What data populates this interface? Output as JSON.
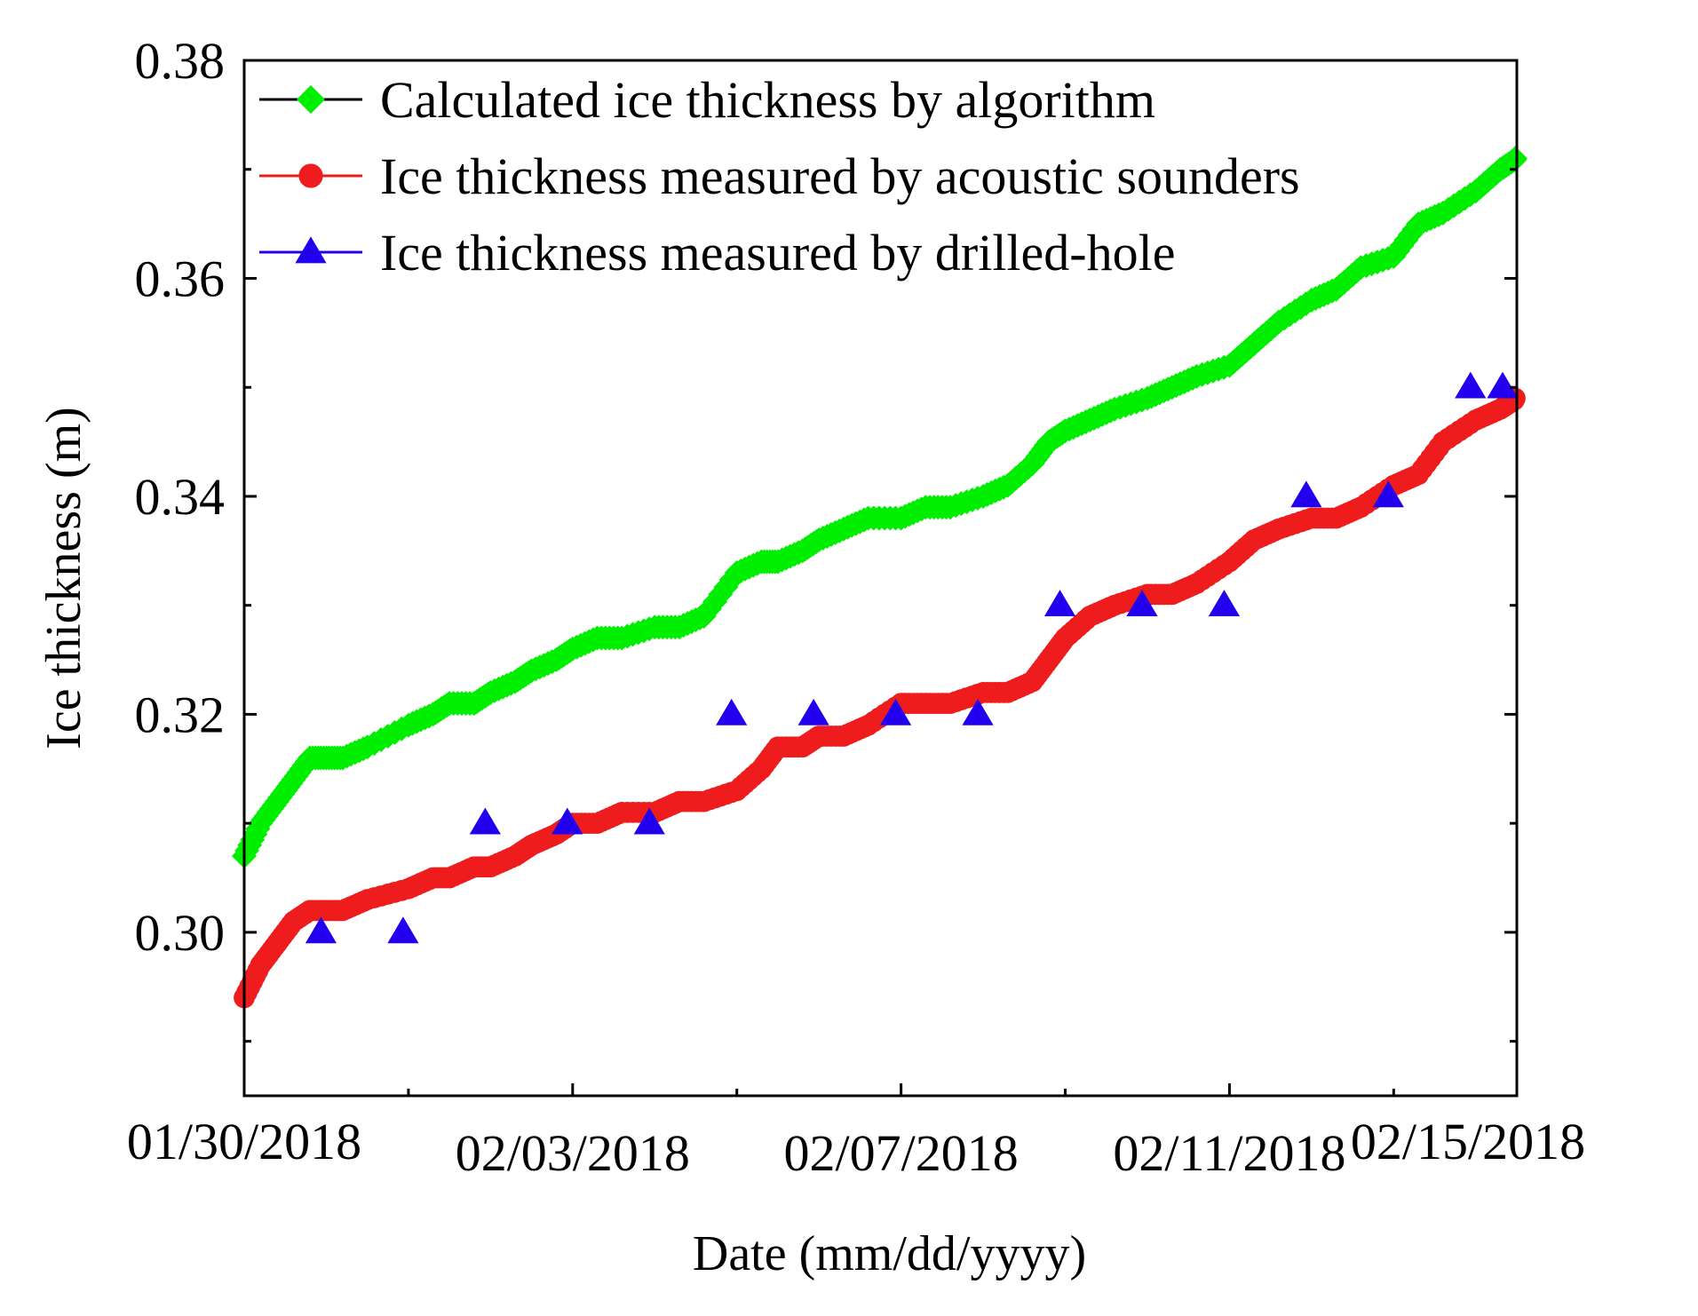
{
  "chart_data": {
    "type": "line",
    "title": "",
    "xlabel": "Date (mm/dd/yyyy)",
    "ylabel": "Ice thickness (m)",
    "x_unit": "days since 01/30/2018",
    "xlim": [
      0,
      15.5
    ],
    "ylim": [
      0.285,
      0.38
    ],
    "y_ticks": [
      "0.30",
      "0.32",
      "0.34",
      "0.36",
      "0.38"
    ],
    "y_tick_values": [
      0.3,
      0.32,
      0.34,
      0.36,
      0.38
    ],
    "x_tick_labels": [
      "01/30/2018",
      "02/03/2018",
      "02/07/2018",
      "02/11/2018",
      "02/15/2018"
    ],
    "x_tick_values": [
      0,
      4,
      8,
      12,
      16
    ],
    "legend_position": "top-left",
    "series": [
      {
        "name": "Calculated ice thickness by algorithm",
        "color": "#00ee00",
        "marker": "diamond",
        "x": [
          0,
          0.2,
          0.4,
          0.6,
          0.8,
          1.0,
          1.2,
          1.5,
          2.0,
          2.3,
          2.5,
          2.8,
          3.0,
          3.3,
          3.5,
          3.8,
          4.0,
          4.3,
          4.6,
          5.0,
          5.3,
          5.6,
          6.0,
          6.3,
          6.5,
          6.8,
          7.0,
          7.3,
          7.6,
          8.0,
          8.3,
          8.6,
          9.0,
          9.3,
          9.6,
          9.8,
          10.0,
          10.3,
          10.6,
          11.0,
          11.3,
          11.6,
          12.0,
          12.3,
          12.6,
          13.0,
          13.3,
          13.6,
          14.0,
          14.3,
          14.6,
          15.0,
          15.3,
          15.5
        ],
        "y": [
          0.307,
          0.31,
          0.312,
          0.314,
          0.316,
          0.316,
          0.316,
          0.317,
          0.319,
          0.32,
          0.321,
          0.321,
          0.322,
          0.323,
          0.324,
          0.325,
          0.326,
          0.327,
          0.327,
          0.328,
          0.328,
          0.329,
          0.333,
          0.334,
          0.334,
          0.335,
          0.336,
          0.337,
          0.338,
          0.338,
          0.339,
          0.339,
          0.34,
          0.341,
          0.343,
          0.345,
          0.346,
          0.347,
          0.348,
          0.349,
          0.35,
          0.351,
          0.352,
          0.354,
          0.356,
          0.358,
          0.359,
          0.361,
          0.362,
          0.365,
          0.366,
          0.368,
          0.37,
          0.371
        ]
      },
      {
        "name": "Ice thickness measured by acoustic sounders",
        "color": "#ee1c1c",
        "marker": "circle",
        "x": [
          0,
          0.2,
          0.4,
          0.6,
          0.8,
          1.0,
          1.2,
          1.5,
          2.0,
          2.3,
          2.5,
          2.8,
          3.0,
          3.3,
          3.5,
          3.8,
          4.0,
          4.3,
          4.6,
          5.0,
          5.3,
          5.6,
          6.0,
          6.3,
          6.5,
          6.8,
          7.0,
          7.3,
          7.6,
          8.0,
          8.3,
          8.6,
          9.0,
          9.3,
          9.6,
          9.8,
          10.0,
          10.3,
          10.6,
          11.0,
          11.3,
          11.6,
          12.0,
          12.3,
          12.6,
          13.0,
          13.3,
          13.6,
          14.0,
          14.3,
          14.6,
          15.0,
          15.3,
          15.5
        ],
        "y": [
          0.294,
          0.297,
          0.299,
          0.301,
          0.302,
          0.302,
          0.302,
          0.303,
          0.304,
          0.305,
          0.305,
          0.306,
          0.306,
          0.307,
          0.308,
          0.309,
          0.31,
          0.31,
          0.311,
          0.311,
          0.312,
          0.312,
          0.313,
          0.315,
          0.317,
          0.317,
          0.318,
          0.318,
          0.319,
          0.321,
          0.321,
          0.321,
          0.322,
          0.322,
          0.323,
          0.325,
          0.327,
          0.329,
          0.33,
          0.331,
          0.331,
          0.332,
          0.334,
          0.336,
          0.337,
          0.338,
          0.338,
          0.339,
          0.341,
          0.342,
          0.345,
          0.347,
          0.348,
          0.349
        ]
      },
      {
        "name": "Ice thickness measured by drilled-hole",
        "color": "#2200ee",
        "marker": "triangle",
        "x": [
          1.0,
          2.0,
          3.0,
          4.0,
          5.0,
          6.0,
          7.0,
          8.0,
          9.0,
          10.0,
          11.0,
          12.0,
          13.0,
          14.0,
          15.0,
          16.0
        ],
        "y": [
          0.3,
          0.3,
          0.31,
          0.31,
          0.31,
          0.32,
          0.32,
          0.32,
          0.32,
          0.33,
          0.33,
          0.33,
          0.34,
          0.34,
          0.35,
          0.35
        ]
      }
    ]
  }
}
